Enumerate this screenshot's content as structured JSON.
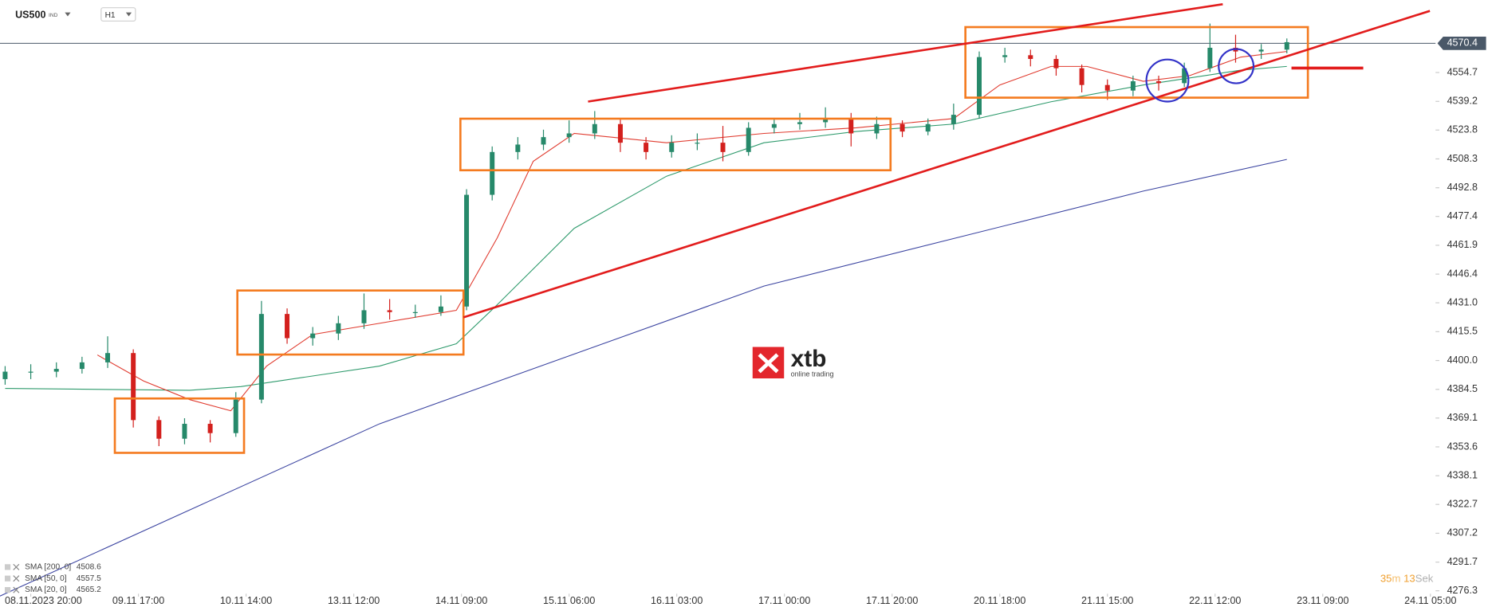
{
  "chart_data": {
    "type": "candlestick",
    "symbol": "US500",
    "symbol_type": "IND",
    "timeframe": "H1",
    "logo": {
      "text": "xtb",
      "tagline": "online trading"
    },
    "countdown": {
      "minutes": "35",
      "minutes_unit": "m",
      "seconds": "13",
      "seconds_unit": "Sek"
    },
    "xlim": [
      -6,
      274
    ],
    "xticks": [
      {
        "value": 0,
        "label": "08.11.2023 20:00"
      },
      {
        "value": 21,
        "label": "09.11 17:00"
      },
      {
        "value": 42,
        "label": "10.11 14:00"
      },
      {
        "value": 63,
        "label": "13.11 12:00"
      },
      {
        "value": 84,
        "label": "14.11 09:00"
      },
      {
        "value": 105,
        "label": "15.11 06:00"
      },
      {
        "value": 126,
        "label": "16.11 03:00"
      },
      {
        "value": 147,
        "label": "17.11 00:00"
      },
      {
        "value": 168,
        "label": "17.11 20:00"
      },
      {
        "value": 189,
        "label": "20.11 18:00"
      },
      {
        "value": 210,
        "label": "21.11 15:00"
      },
      {
        "value": 231,
        "label": "22.11 12:00"
      },
      {
        "value": 252,
        "label": "23.11 09:00"
      },
      {
        "value": 273,
        "label": "24.11 05:00"
      }
    ],
    "ylim": [
      4265.5,
      4593.6
    ],
    "yticks": [
      4276.3,
      4291.7,
      4307.2,
      4322.7,
      4338.1,
      4353.6,
      4369.1,
      4384.5,
      {
        "value": 4400,
        "label": "4400.0"
      },
      4415.5,
      {
        "value": 4431,
        "label": "4431.0"
      },
      4446.4,
      4461.9,
      4477.4,
      4492.8,
      4508.3,
      4523.8,
      4539.2,
      4554.7
    ],
    "last_price": 4570.4,
    "up_color": "#26896a",
    "down_color": "#d3201d",
    "x": [
      -5,
      0,
      5,
      10,
      15,
      20,
      25,
      30,
      35,
      40,
      45,
      50,
      55,
      60,
      65,
      70,
      75,
      80,
      85,
      90,
      95,
      100,
      105,
      110,
      115,
      120,
      125,
      130,
      135,
      140,
      145,
      150,
      155,
      160,
      165,
      170,
      175,
      180,
      185,
      190,
      195,
      200,
      205,
      210,
      215,
      220,
      225,
      230,
      235,
      240,
      245
    ],
    "open": [
      4390,
      4394,
      4394,
      4395.5,
      4399,
      4404,
      4368,
      4358,
      4366,
      4361,
      4379,
      4425,
      4412,
      4414.5,
      4420,
      4427,
      4426,
      4426,
      4429,
      4489,
      4512,
      4516,
      4520,
      4522,
      4527,
      4517,
      4512,
      4517,
      4517,
      4512,
      4525,
      4527,
      4528,
      4530,
      4522,
      4527,
      4523,
      4527,
      4532,
      4563,
      4564,
      4562,
      4557,
      4548,
      4545,
      4550,
      4549,
      4557,
      4568,
      4566,
      4567
    ],
    "high": [
      4397,
      4398,
      4399,
      4402,
      4413,
      4406,
      4370,
      4369,
      4368,
      4383,
      4432,
      4428,
      4418,
      4424,
      4436,
      4433,
      4430,
      4435,
      4492,
      4515,
      4520,
      4524,
      4529,
      4534,
      4530,
      4520,
      4521,
      4522,
      4526,
      4528,
      4530,
      4533,
      4536,
      4533,
      4531,
      4529,
      4530,
      4538,
      4566,
      4568,
      4567,
      4564,
      4559,
      4551,
      4553,
      4553,
      4560,
      4581,
      4575,
      4570,
      4573
    ],
    "low": [
      4387,
      4390,
      4391,
      4393,
      4396,
      4364,
      4354,
      4355,
      4356,
      4359,
      4377,
      4409,
      4408,
      4411,
      4417,
      4422,
      4423,
      4424,
      4427,
      4486,
      4508,
      4513,
      4517,
      4519,
      4512,
      4508,
      4509,
      4513,
      4507,
      4510,
      4522,
      4524,
      4525,
      4515,
      4519,
      4520,
      4521,
      4524,
      4530,
      4560,
      4558,
      4553,
      4544,
      4540,
      4542,
      4545,
      4547,
      4555,
      4560,
      4562,
      4565
    ],
    "close": [
      4394,
      4394,
      4395.5,
      4399,
      4404,
      4368,
      4358,
      4366,
      4361,
      4379,
      4425,
      4412,
      4414.5,
      4420,
      4427,
      4426,
      4426,
      4429,
      4489,
      4512,
      4516,
      4520,
      4522,
      4527,
      4517,
      4512,
      4517,
      4517,
      4512,
      4525,
      4527,
      4528,
      4530,
      4522,
      4527,
      4523,
      4527,
      4532,
      4563,
      4564,
      4562,
      4557,
      4548,
      4545,
      4550,
      4549,
      4557,
      4568,
      4566,
      4567,
      4571
    ],
    "series": [
      {
        "name": "SMA [200, 0]",
        "last": 4508.6,
        "color": "#3a43a0",
        "x": [
          -6,
          68,
          143,
          217,
          245
        ],
        "values": [
          4273.5,
          4366,
          4440,
          4491,
          4508
        ]
      },
      {
        "name": "SMA [50, 0]",
        "last": 4557.5,
        "color": "#2e9a6c",
        "x": [
          -5,
          31,
          41,
          68,
          83,
          91,
          106,
          124,
          143,
          161,
          180,
          199,
          217,
          236,
          245
        ],
        "values": [
          4385,
          4384,
          4386,
          4397,
          4409,
          4430,
          4471,
          4499,
          4517,
          4523,
          4527,
          4539,
          4548,
          4556,
          4558
        ]
      },
      {
        "name": "SMA [20, 0]",
        "last": 4565.2,
        "color": "#e03a2e",
        "x": [
          13,
          22,
          31,
          39,
          46,
          55,
          68,
          83,
          91,
          98,
          106,
          124,
          143,
          161,
          180,
          189,
          199,
          206,
          217,
          226,
          236,
          245
        ],
        "values": [
          4403,
          4389,
          4379,
          4373,
          4397,
          4414,
          4420,
          4427,
          4466,
          4507,
          4522,
          4517,
          4522,
          4525,
          4530,
          4548,
          4558,
          4558,
          4550,
          4553,
          4563,
          4566
        ]
      }
    ],
    "drawings": {
      "box_color": "#f47b20",
      "line_color": "#e21c1c",
      "circle_color": "#3232c8",
      "boxes": [
        {
          "x": [
            16.4,
            41.6
          ],
          "y": [
            4350.4,
            4379.6
          ]
        },
        {
          "x": [
            40.3,
            84.4
          ],
          "y": [
            4403.2,
            4437.6
          ]
        },
        {
          "x": [
            83.8,
            167.7
          ],
          "y": [
            4502.2,
            4529.9
          ]
        },
        {
          "x": [
            182.3,
            249.1
          ],
          "y": [
            4541.2,
            4579.1
          ]
        }
      ],
      "lines": [
        {
          "x": [
            108.7,
            232.5
          ],
          "y": [
            4539.1,
            4591.4
          ]
        },
        {
          "x": [
            84.4,
            272.9
          ],
          "y": [
            4423.2,
            4587.8
          ]
        },
        {
          "x": [
            245.9,
            259.9
          ],
          "y": [
            4557.1,
            4557.1
          ]
        }
      ],
      "circles": [
        {
          "x": 221.7,
          "y": 4550.4,
          "rx": 4.1,
          "ry": 11.3
        },
        {
          "x": 235.1,
          "y": 4558.1,
          "rx": 3.4,
          "ry": 9.2
        }
      ]
    }
  }
}
